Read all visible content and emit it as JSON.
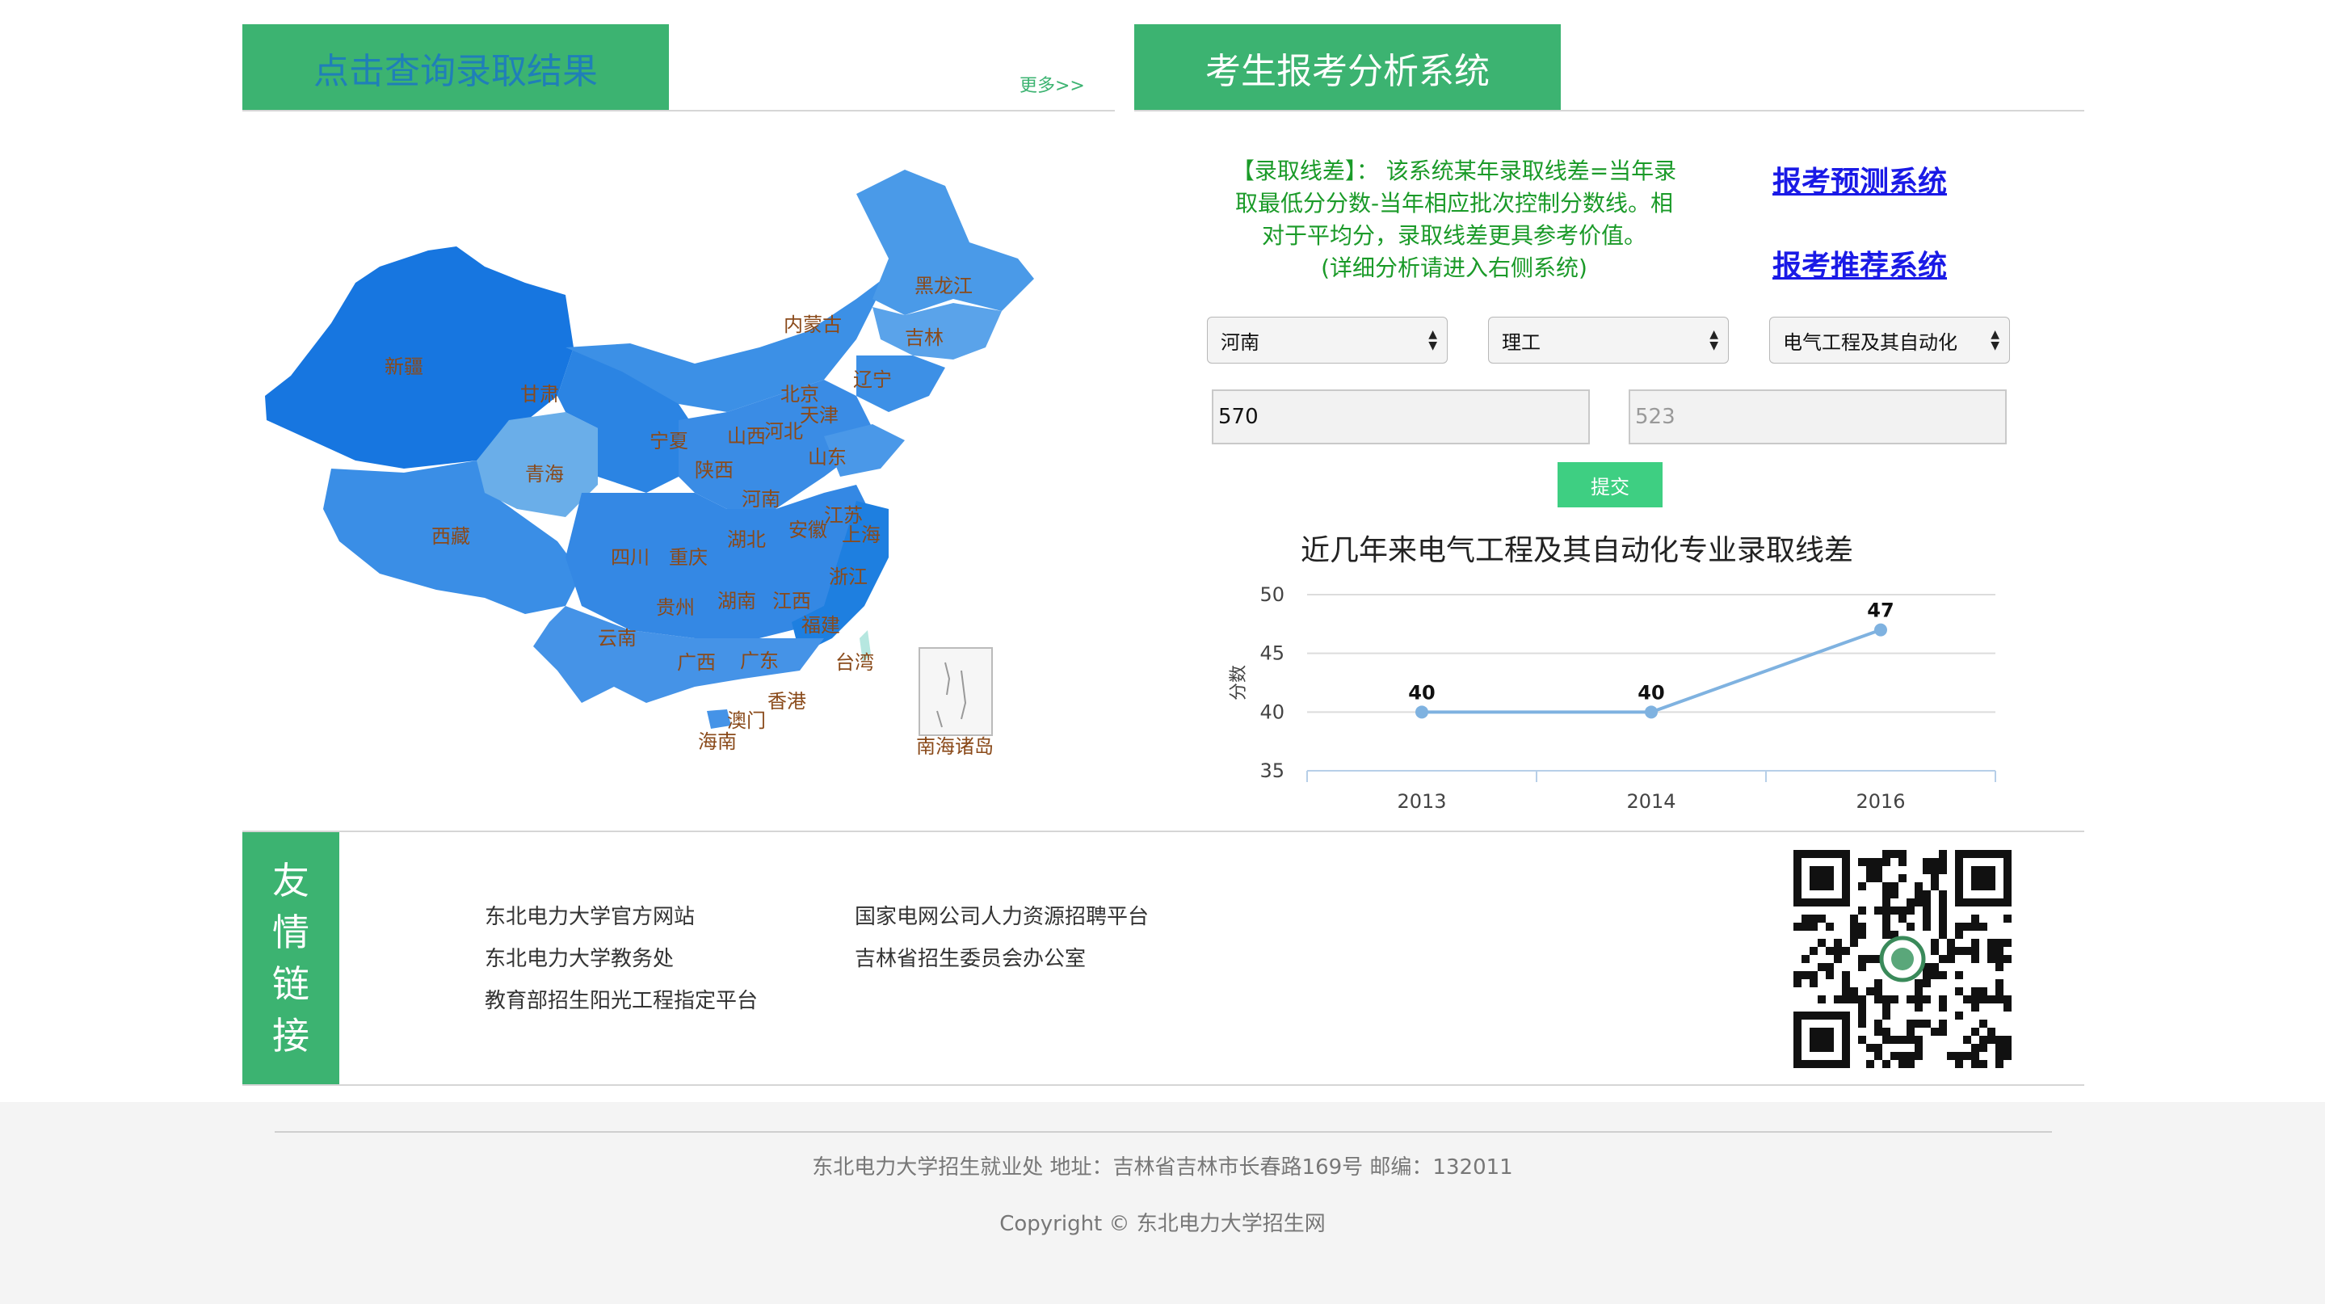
{
  "left_section": {
    "title": "点击查询录取结果",
    "more": "更多>>"
  },
  "right_section": {
    "title": "考生报考分析系统"
  },
  "map": {
    "provinces": [
      "新疆",
      "甘肃",
      "青海",
      "西藏",
      "内蒙古",
      "黑龙江",
      "吉林",
      "辽宁",
      "北京",
      "天津",
      "河北",
      "山西",
      "宁夏",
      "陕西",
      "山东",
      "河南",
      "江苏",
      "安徽",
      "上海",
      "湖北",
      "四川",
      "重庆",
      "浙江",
      "贵州",
      "湖南",
      "江西",
      "福建",
      "云南",
      "广西",
      "广东",
      "台湾",
      "香港",
      "澳门",
      "海南",
      "南海诸岛"
    ]
  },
  "analysis": {
    "lines": [
      "【录取线差】： 该系统某年录取线差=当年录",
      "取最低分分数-当年相应批次控制分数线。相",
      "对于平均分，录取线差更具参考价值。",
      "(详细分析请进入右侧系统)"
    ],
    "predict_link": "报考预测系统",
    "recommend_link": "报考推荐系统"
  },
  "form": {
    "province": "河南",
    "subject_type": "理工",
    "major": "电气工程及其自动化",
    "score_value": "570",
    "control_line_placeholder": "523",
    "submit_label": "提交"
  },
  "chart_data": {
    "type": "line",
    "title": "近几年来电气工程及其自动化专业录取线差",
    "categories": [
      "2013",
      "2014",
      "2016"
    ],
    "values": [
      40,
      40,
      47
    ],
    "ylabel": "分数",
    "xlabel": "",
    "ylim": [
      35,
      50
    ],
    "yticks": [
      35,
      40,
      45,
      50
    ],
    "color": "#7fb2e0"
  },
  "friends": {
    "title_chars": [
      "友",
      "情",
      "链",
      "接"
    ],
    "col1": [
      "东北电力大学官方网站",
      "东北电力大学教务处",
      "教育部招生阳光工程指定平台"
    ],
    "col2": [
      "国家电网公司人力资源招聘平台",
      "吉林省招生委员会办公室"
    ]
  },
  "footer": {
    "address": "东北电力大学招生就业处    地址：吉林省吉林市长春路169号 邮编：132011",
    "copyright": "Copyright © 东北电力大学招生网"
  },
  "colors": {
    "accent": "#3cb371",
    "link": "#1a1ae6",
    "map_blue": "#2e86de"
  }
}
